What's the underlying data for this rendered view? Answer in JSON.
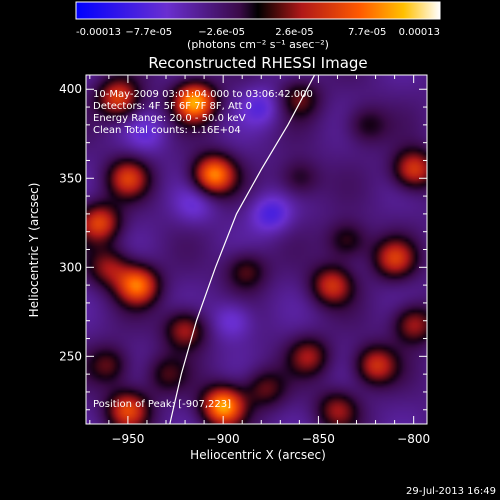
{
  "colorbar": {
    "tick_labels": [
      "-0.00013",
      "−7.7e-05",
      "−2.6e-05",
      "2.6e-05",
      "7.7e-05",
      "0.00013"
    ],
    "unit_label": "(photons cm⁻² s⁻¹ asec⁻²)",
    "range": [
      -0.00013,
      0.00013
    ]
  },
  "chart_data": {
    "type": "heatmap",
    "title": "Reconstructed RHESSI Image",
    "xlabel": "Heliocentric X (arcsec)",
    "ylabel": "Heliocentric Y (arcsec)",
    "xlim": [
      -972,
      -793
    ],
    "ylim": [
      212,
      408
    ],
    "xtick_values": [
      -950,
      -900,
      -850,
      -800
    ],
    "xtick_labels": [
      "−950",
      "−900",
      "−850",
      "−800"
    ],
    "ytick_values": [
      250,
      300,
      350,
      400
    ],
    "ytick_labels": [
      "250",
      "300",
      "350",
      "400"
    ],
    "annotations": [
      "10-May-2009 03:01:04.000 to 03:06:42.000",
      "Detectors: 4F 5F 6F 7F 8F, Att 0",
      "Energy Range: 20.0 - 50.0 keV",
      "Clean    Total counts: 1.16E+04"
    ],
    "peak_label": "Position of Peak: [-907,223]",
    "peak_position": [
      -907,
      223
    ],
    "limb_curve": {
      "x": [
        -928,
        -922,
        -914,
        -904,
        -893,
        -880,
        -866,
        -852
      ],
      "y": [
        212,
        240,
        270,
        300,
        330,
        355,
        380,
        408
      ]
    },
    "blobs": [
      {
        "x": -955,
        "y": 395,
        "v": 9e-05
      },
      {
        "x": -915,
        "y": 393,
        "v": 0.00013
      },
      {
        "x": -880,
        "y": 390,
        "v": -4e-05
      },
      {
        "x": -905,
        "y": 352,
        "v": 0.00012
      },
      {
        "x": -950,
        "y": 350,
        "v": 8e-05
      },
      {
        "x": -965,
        "y": 325,
        "v": 9e-05
      },
      {
        "x": -945,
        "y": 290,
        "v": 0.00011
      },
      {
        "x": -960,
        "y": 300,
        "v": 6e-05
      },
      {
        "x": -915,
        "y": 335,
        "v": -3e-05
      },
      {
        "x": -920,
        "y": 265,
        "v": 7e-05
      },
      {
        "x": -888,
        "y": 298,
        "v": 5e-05
      },
      {
        "x": -860,
        "y": 350,
        "v": 4e-05
      },
      {
        "x": -843,
        "y": 290,
        "v": 8e-05
      },
      {
        "x": -835,
        "y": 315,
        "v": 5e-05
      },
      {
        "x": -800,
        "y": 355,
        "v": 9e-05
      },
      {
        "x": -810,
        "y": 305,
        "v": 8e-05
      },
      {
        "x": -800,
        "y": 268,
        "v": 7e-05
      },
      {
        "x": -820,
        "y": 245,
        "v": 8e-05
      },
      {
        "x": -855,
        "y": 250,
        "v": 6e-05
      },
      {
        "x": -840,
        "y": 220,
        "v": 6e-05
      },
      {
        "x": -878,
        "y": 232,
        "v": 5e-05
      },
      {
        "x": -900,
        "y": 222,
        "v": 0.00013
      },
      {
        "x": -950,
        "y": 220,
        "v": 9e-05
      },
      {
        "x": -960,
        "y": 245,
        "v": 5e-05
      },
      {
        "x": -930,
        "y": 240,
        "v": 4e-05
      },
      {
        "x": -875,
        "y": 330,
        "v": -5e-05
      },
      {
        "x": -895,
        "y": 270,
        "v": -4e-05
      },
      {
        "x": -860,
        "y": 395,
        "v": 5e-05
      },
      {
        "x": -940,
        "y": 375,
        "v": -3e-05
      },
      {
        "x": -825,
        "y": 380,
        "v": 4e-05
      }
    ]
  },
  "footer": {
    "timestamp": "29-Jul-2013 16:49"
  }
}
